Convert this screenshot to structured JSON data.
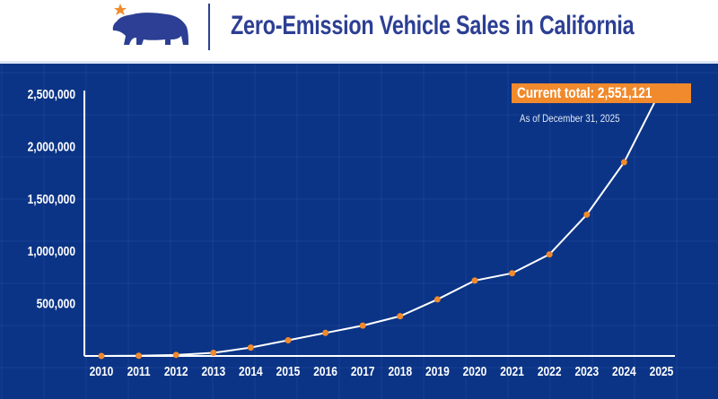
{
  "header": {
    "title": "Zero-Emission Vehicle Sales in California",
    "logo": "california-bear-star-logo"
  },
  "colors": {
    "background": "#0b3486",
    "line": "#ffffff",
    "marker": "#f18a2c",
    "title": "#2c3f94"
  },
  "chart_data": {
    "type": "line",
    "title": "Zero-Emission Vehicle Sales in California",
    "xlabel": "",
    "ylabel": "",
    "categories": [
      "2010",
      "2011",
      "2012",
      "2013",
      "2014",
      "2015",
      "2016",
      "2017",
      "2018",
      "2019",
      "2020",
      "2021",
      "2022",
      "2023",
      "2024",
      "2025"
    ],
    "values": [
      0,
      2000,
      10000,
      30000,
      80000,
      150000,
      220000,
      290000,
      380000,
      540000,
      720000,
      790000,
      970000,
      1350000,
      1850000,
      2551121
    ],
    "ylim": [
      0,
      2500000
    ],
    "yticks": [
      500000,
      1000000,
      1500000,
      2000000,
      2500000
    ],
    "ytick_labels": [
      "500,000",
      "1,000,000",
      "1,500,000",
      "2,000,000",
      "2,500,000"
    ],
    "grid": true,
    "annotation": {
      "label": "Current total: 2,551,121",
      "sublabel": "As of December 31, 2025"
    }
  }
}
